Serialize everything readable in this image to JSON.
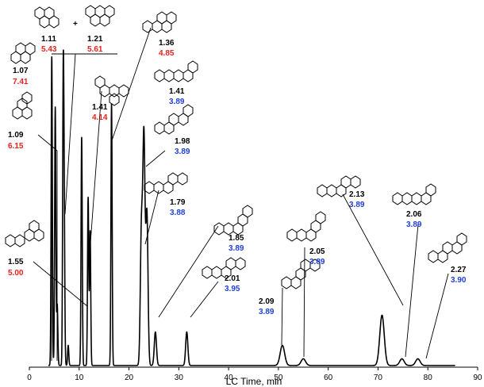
{
  "chart_data": {
    "type": "line",
    "title": "",
    "xlabel": "LC Time, min",
    "ylabel": "",
    "xlim": [
      0,
      90
    ],
    "ylim": [
      0,
      1
    ],
    "grid": false,
    "xticks": [
      0,
      10,
      20,
      30,
      40,
      50,
      60,
      70,
      80,
      90
    ],
    "peaks": [
      {
        "t": 4.5,
        "h": 0.92
      },
      {
        "t": 5.2,
        "h": 0.77
      },
      {
        "t": 5.6,
        "h": 0.18
      },
      {
        "t": 6.8,
        "h": 0.82
      },
      {
        "t": 7.0,
        "h": 0.4
      },
      {
        "t": 7.8,
        "h": 0.06
      },
      {
        "t": 10.5,
        "h": 0.68
      },
      {
        "t": 11.8,
        "h": 0.5
      },
      {
        "t": 12.2,
        "h": 0.4
      },
      {
        "t": 16.5,
        "h": 0.78
      },
      {
        "t": 22.5,
        "h": 0.4
      },
      {
        "t": 23.0,
        "h": 0.67
      },
      {
        "t": 23.6,
        "h": 0.45
      },
      {
        "t": 25.3,
        "h": 0.1
      },
      {
        "t": 31.6,
        "h": 0.1
      },
      {
        "t": 50.8,
        "h": 0.06
      },
      {
        "t": 55.0,
        "h": 0.02
      },
      {
        "t": 70.8,
        "h": 0.15
      },
      {
        "t": 74.8,
        "h": 0.02
      },
      {
        "t": 78.0,
        "h": 0.02
      }
    ],
    "annotations": [
      {
        "ratio": "1.07",
        "value": "7.41",
        "value_color": "red"
      },
      {
        "ratio": "1.09",
        "value": "6.15",
        "value_color": "red"
      },
      {
        "ratio": "1.55",
        "value": "5.00",
        "value_color": "red"
      },
      {
        "ratio": "1.11",
        "value": "5.43",
        "value_color": "red"
      },
      {
        "plus": "+"
      },
      {
        "ratio": "1.21",
        "value": "5.61",
        "value_color": "red"
      },
      {
        "ratio": "1.36",
        "value": "4.85",
        "value_color": "red"
      },
      {
        "ratio": "1.41",
        "value": "4.14",
        "value_color": "red"
      },
      {
        "ratio": "1.41",
        "value": "3.89",
        "value_color": "blue"
      },
      {
        "ratio": "1.98",
        "value": "3.89",
        "value_color": "blue"
      },
      {
        "ratio": "1.79",
        "value": "3.88",
        "value_color": "blue"
      },
      {
        "ratio": "1.85",
        "value": "3.89",
        "value_color": "blue"
      },
      {
        "ratio": "2.01",
        "value": "3.95",
        "value_color": "blue"
      },
      {
        "ratio": "2.09",
        "value": "3.89",
        "value_color": "blue"
      },
      {
        "ratio": "2.05",
        "value": "3.89",
        "value_color": "blue"
      },
      {
        "ratio": "2.13",
        "value": "3.89",
        "value_color": "blue"
      },
      {
        "ratio": "2.06",
        "value": "3.89",
        "value_color": "blue"
      },
      {
        "ratio": "2.27",
        "value": "3.90",
        "value_color": "blue"
      }
    ]
  },
  "colors": {
    "red": "#e8201c",
    "blue": "#1f3fd8",
    "black": "#000000"
  }
}
